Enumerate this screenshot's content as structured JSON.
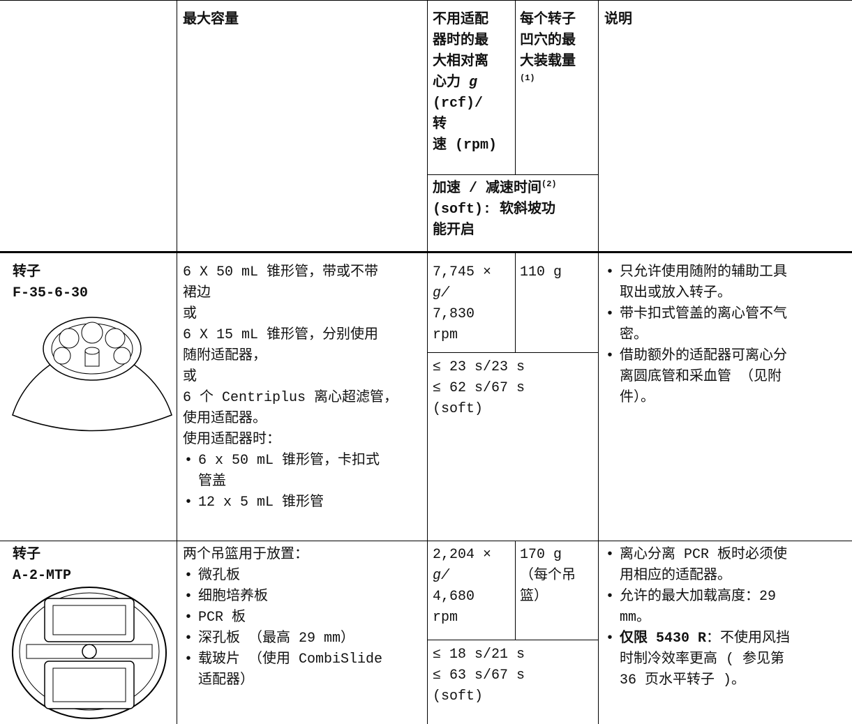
{
  "table": {
    "header": {
      "capacity": "最大容量",
      "rcf": {
        "lines": [
          "不用适配",
          "器时的最",
          "大相对离",
          "心力"
        ],
        "g": "g",
        "rest": [
          "(rcf)/",
          "转",
          "速 (rpm)"
        ]
      },
      "load": {
        "lines": [
          "每个转子",
          "凹穴的最",
          "大装载量"
        ],
        "note": "(1)"
      },
      "accel": {
        "first": "加速 / 减速时间",
        "note": "(2)",
        "lines": [
          "(soft): 软斜坡功",
          "能开启"
        ]
      },
      "description": "说明"
    },
    "rows": [
      {
        "rotor": [
          "转子",
          "F-35-6-30"
        ],
        "capacity": {
          "lines": [
            "6 X 50 mL 锥形管，带或不带",
            "裙边",
            "或",
            "6 X 15 mL 锥形管，分别使用",
            "随附适配器，",
            "或",
            "6 个 Centriplus 离心超滤管，",
            "使用适配器。",
            "使用适配器时："
          ],
          "bullets": [
            {
              "lines": [
                "6 x 50 mL 锥形管，卡扣式",
                "管盖"
              ]
            },
            {
              "lines": [
                "12 x 5 mL 锥形管"
              ]
            }
          ]
        },
        "rcf": [
          "7,745 ×",
          "g/",
          "7,830",
          "rpm"
        ],
        "load": [
          "110 g"
        ],
        "accel": [
          "≤ 23 s/23 s",
          "≤ 62 s/67 s",
          "(soft)"
        ],
        "notes": [
          {
            "lines": [
              "只允许使用随附的辅助工具",
              "取出或放入转子。"
            ]
          },
          {
            "lines": [
              "带卡扣式管盖的离心管不气",
              "密。"
            ]
          },
          {
            "lines": [
              "借助额外的适配器可离心分",
              "离圆底管和采血管 （见附",
              "件）。"
            ]
          }
        ]
      },
      {
        "rotor": [
          "转子",
          "A-2-MTP"
        ],
        "capacity": {
          "lines": [
            "两个吊篮用于放置："
          ],
          "bullets": [
            {
              "lines": [
                "微孔板"
              ]
            },
            {
              "lines": [
                "细胞培养板"
              ]
            },
            {
              "lines": [
                "PCR 板"
              ]
            },
            {
              "lines": [
                "深孔板 （最高 29 mm）"
              ]
            },
            {
              "lines": [
                "载玻片 （使用 CombiSlide",
                "适配器）"
              ]
            }
          ]
        },
        "rcf": [
          "2,204 ×",
          "g/",
          "4,680",
          "rpm"
        ],
        "load": [
          "170 g",
          "（每个吊",
          "篮）"
        ],
        "accel": [
          "≤ 18 s/21 s",
          "≤ 63 s/67 s",
          "(soft)"
        ],
        "notes": [
          {
            "lines": [
              "离心分离 PCR 板时必须使",
              "用相应的适配器。"
            ]
          },
          {
            "lines": [
              "允许的最大加载高度：29",
              "mm。"
            ]
          },
          {
            "bold": "仅限 5430 R",
            "lines": [
              "：不使用风挡",
              "时制冷效率更高 ( 参见第",
              "36 页水平转子 )。"
            ]
          }
        ]
      }
    ]
  }
}
